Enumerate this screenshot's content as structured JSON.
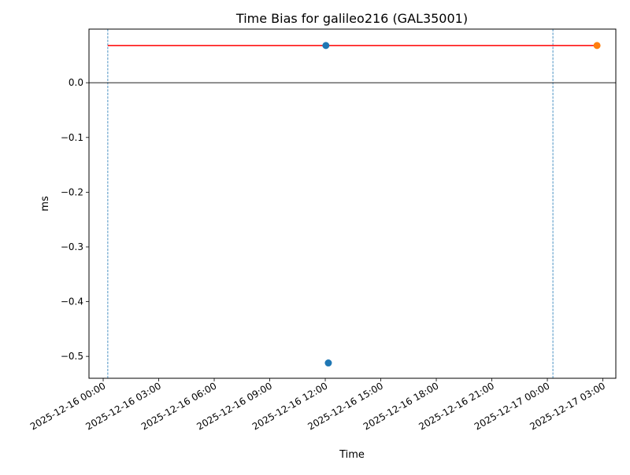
{
  "chart_data": {
    "type": "scatter",
    "title": "Time Bias for galileo216 (GAL35001)",
    "xlabel": "Time",
    "ylabel": "ms",
    "xlim": [
      "2025-12-15T23:14",
      "2025-12-17T03:42"
    ],
    "ylim": [
      -0.54,
      0.098
    ],
    "x_ticks": [
      "2025-12-16 00:00",
      "2025-12-16 03:00",
      "2025-12-16 06:00",
      "2025-12-16 09:00",
      "2025-12-16 12:00",
      "2025-12-16 15:00",
      "2025-12-16 18:00",
      "2025-12-16 21:00",
      "2025-12-17 00:00",
      "2025-12-17 03:00"
    ],
    "y_ticks": [
      0.0,
      -0.1,
      -0.2,
      -0.3,
      -0.4,
      -0.5
    ],
    "y_tick_labels": [
      "0.0",
      "−0.1",
      "−0.2",
      "−0.3",
      "−0.4",
      "−0.5"
    ],
    "grid": false,
    "series": [
      {
        "color": "#1f77b4",
        "kind": "points",
        "x": [
          "2025-12-16T12:02",
          "2025-12-16T12:10"
        ],
        "y": [
          0.068,
          -0.512
        ]
      },
      {
        "color": "#ff7f0e",
        "kind": "points",
        "x": [
          "2025-12-17T02:41"
        ],
        "y": [
          0.068
        ]
      },
      {
        "color": "#ff0000",
        "kind": "line",
        "x": [
          "2025-12-16T00:15",
          "2025-12-17T02:41"
        ],
        "y": [
          0.068,
          0.068
        ]
      }
    ],
    "reference_lines": {
      "horizontal": {
        "y": 0.0,
        "color": "#000000"
      },
      "vertical": [
        {
          "x": "2025-12-16T00:15",
          "color": "#1f77b4",
          "style": "dashed"
        },
        {
          "x": "2025-12-17T00:18",
          "color": "#1f77b4",
          "style": "dashed"
        }
      ]
    }
  }
}
